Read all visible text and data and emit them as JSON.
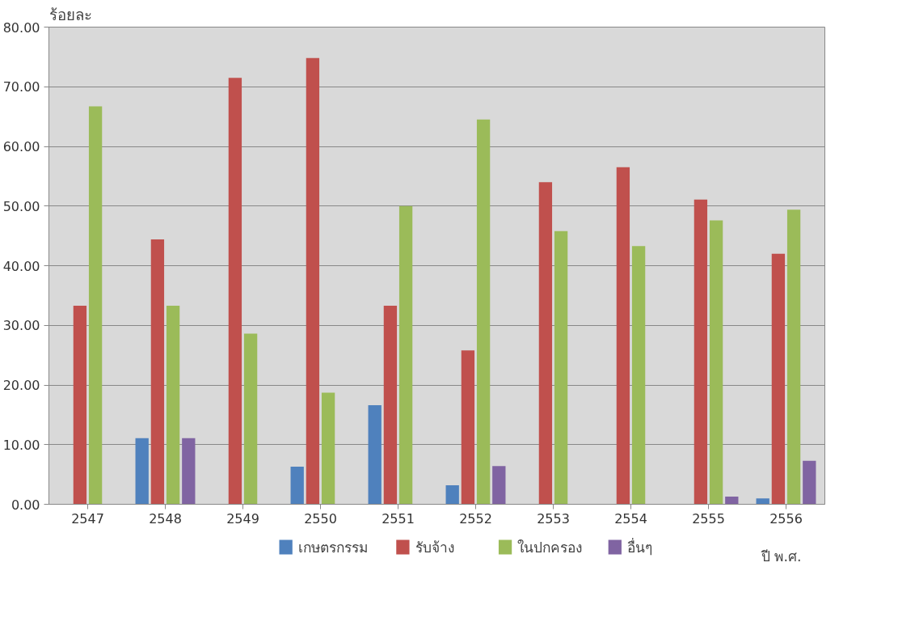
{
  "chart_data": {
    "type": "bar",
    "ylabel": "ร้อยละ",
    "xlabel": "ปี พ.ศ.",
    "categories": [
      "2547",
      "2548",
      "2549",
      "2550",
      "2551",
      "2552",
      "2553",
      "2554",
      "2555",
      "2556"
    ],
    "series": [
      {
        "name": "เกษตรกรรม",
        "color": "#4f81bd",
        "values": [
          0,
          11.1,
          0,
          6.3,
          16.6,
          3.2,
          0,
          0,
          0,
          1.0
        ]
      },
      {
        "name": "รับจ้าง",
        "color": "#c0504d",
        "values": [
          33.3,
          44.4,
          71.5,
          74.8,
          33.3,
          25.8,
          54.0,
          56.5,
          51.1,
          42.0
        ]
      },
      {
        "name": "ในปกครอง",
        "color": "#9bbb59",
        "values": [
          66.7,
          33.3,
          28.6,
          18.7,
          50.0,
          64.5,
          45.8,
          43.3,
          47.6,
          49.4
        ]
      },
      {
        "name": "อื่นๆ",
        "color": "#8064a2",
        "values": [
          0,
          11.1,
          0,
          0,
          0,
          6.4,
          0,
          0,
          1.3,
          7.3
        ]
      }
    ],
    "ylim": [
      0,
      80
    ],
    "yticks": [
      {
        "value": 0,
        "label": "0.00"
      },
      {
        "value": 10,
        "label": "10.00"
      },
      {
        "value": 20,
        "label": "20.00"
      },
      {
        "value": 30,
        "label": "30.00"
      },
      {
        "value": 40,
        "label": "40.00"
      },
      {
        "value": 50,
        "label": "50.00"
      },
      {
        "value": 60,
        "label": "60.00"
      },
      {
        "value": 70,
        "label": "70.00"
      },
      {
        "value": 80,
        "label": "80.00"
      }
    ],
    "grid": "y",
    "legend": "bottom"
  }
}
